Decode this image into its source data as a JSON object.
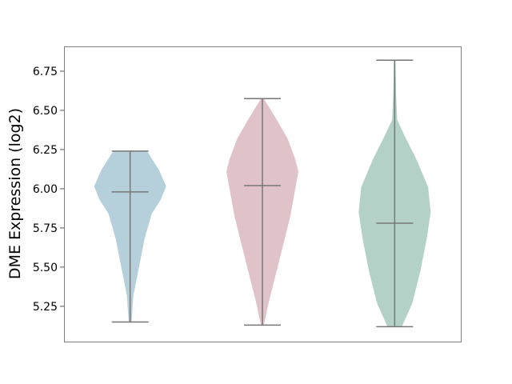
{
  "chart_data": {
    "type": "violin",
    "title": "",
    "xlabel": "",
    "ylabel": "DME Expression (log2)",
    "ylim": [
      5.025,
      6.908
    ],
    "yticks": [
      "5.25",
      "5.50",
      "5.75",
      "6.00",
      "6.25",
      "6.50",
      "6.75"
    ],
    "grid": false,
    "line_color": "#777777",
    "series": [
      {
        "color": "#b5cfdb",
        "min": 5.15,
        "max": 6.24,
        "median": 5.98,
        "density": [
          [
            5.15,
            0.04
          ],
          [
            5.32,
            0.09
          ],
          [
            5.47,
            0.22
          ],
          [
            5.68,
            0.4
          ],
          [
            5.84,
            0.6
          ],
          [
            5.93,
            0.85
          ],
          [
            6.015,
            1.0
          ],
          [
            6.12,
            0.8
          ],
          [
            6.24,
            0.47
          ]
        ]
      },
      {
        "color": "#e0c3c9",
        "min": 5.13,
        "max": 6.575,
        "median": 6.02,
        "density": [
          [
            5.13,
            0.04
          ],
          [
            5.28,
            0.18
          ],
          [
            5.48,
            0.4
          ],
          [
            5.68,
            0.62
          ],
          [
            5.83,
            0.78
          ],
          [
            6.11,
            1.0
          ],
          [
            6.19,
            0.91
          ],
          [
            6.32,
            0.7
          ],
          [
            6.44,
            0.4
          ],
          [
            6.575,
            0.04
          ]
        ]
      },
      {
        "color": "#b3d1c7",
        "min": 5.12,
        "max": 6.82,
        "median": 5.78,
        "density": [
          [
            5.12,
            0.2
          ],
          [
            5.27,
            0.49
          ],
          [
            5.47,
            0.71
          ],
          [
            5.68,
            0.89
          ],
          [
            5.85,
            1.0
          ],
          [
            6.01,
            0.93
          ],
          [
            6.19,
            0.6
          ],
          [
            6.34,
            0.27
          ],
          [
            6.44,
            0.07
          ],
          [
            6.6,
            0.04
          ],
          [
            6.82,
            0.02
          ]
        ]
      }
    ]
  }
}
